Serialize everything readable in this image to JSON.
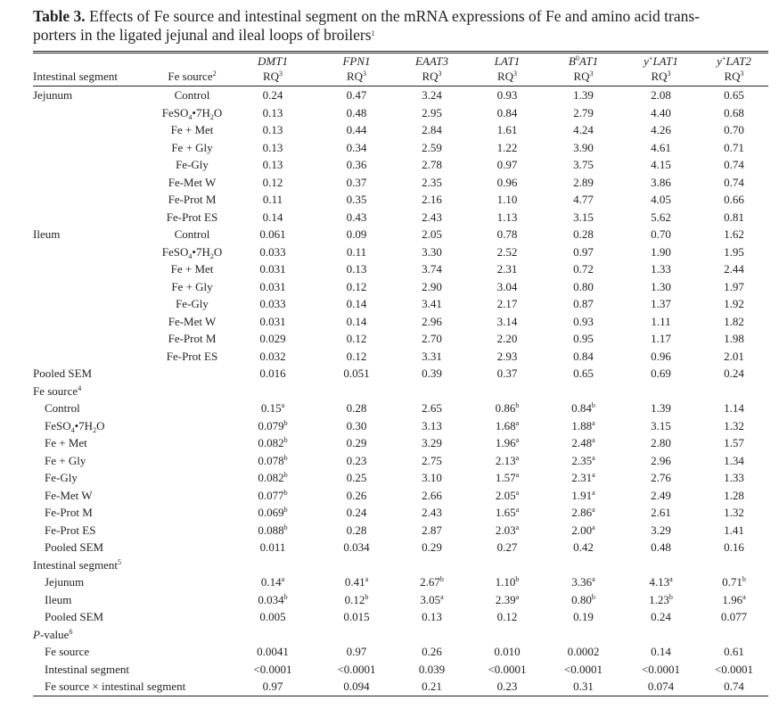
{
  "table": {
    "title": {
      "label": "Table 3.",
      "lines": [
        "Effects of Fe source and intestinal segment on the mRNA expressions of Fe and amino acid trans-",
        "porters in the ligated jejunal and ileal loops of broilers"
      ],
      "sup": "1"
    },
    "header": {
      "segment_label": "Intestinal segment",
      "source_label": [
        "Fe source",
        {
          "sup": "2"
        }
      ],
      "columns": [
        {
          "name": [
            {
              "i": "DMT1"
            }
          ],
          "unit": [
            "RQ",
            {
              "sup": "3"
            }
          ]
        },
        {
          "name": [
            {
              "i": "FPN1"
            }
          ],
          "unit": [
            "RQ",
            {
              "sup": "3"
            }
          ]
        },
        {
          "name": [
            {
              "i": "EAAT3"
            }
          ],
          "unit": [
            "RQ",
            {
              "sup": "3"
            }
          ]
        },
        {
          "name": [
            {
              "i": "LAT1"
            }
          ],
          "unit": [
            "RQ",
            {
              "sup": "3"
            }
          ]
        },
        {
          "name": [
            {
              "i": "B"
            },
            {
              "sup": "0"
            },
            {
              "i": "AT1"
            }
          ],
          "unit": [
            "RQ",
            {
              "sup": "3"
            }
          ]
        },
        {
          "name": [
            {
              "i": "y"
            },
            {
              "sup": "+"
            },
            {
              "i": "LAT1"
            }
          ],
          "unit": [
            "RQ",
            {
              "sup": "3"
            }
          ]
        },
        {
          "name": [
            {
              "i": "y"
            },
            {
              "sup": "+"
            },
            {
              "i": "LAT2"
            }
          ],
          "unit": [
            "RQ",
            {
              "sup": "3"
            }
          ]
        }
      ]
    },
    "sections": [
      {
        "segment": "Jejunum",
        "rows": [
          {
            "source": "Control",
            "values": [
              "0.24",
              "0.47",
              "3.24",
              "0.93",
              "1.39",
              "2.08",
              "0.65"
            ]
          },
          {
            "source": [
              "FeSO",
              {
                "sub": "4"
              },
              "•7H",
              {
                "sub": "2"
              },
              "O"
            ],
            "values": [
              "0.13",
              "0.48",
              "2.95",
              "0.84",
              "2.79",
              "4.40",
              "0.68"
            ]
          },
          {
            "source": "Fe + Met",
            "values": [
              "0.13",
              "0.44",
              "2.84",
              "1.61",
              "4.24",
              "4.26",
              "0.70"
            ]
          },
          {
            "source": "Fe + Gly",
            "values": [
              "0.13",
              "0.34",
              "2.59",
              "1.22",
              "3.90",
              "4.61",
              "0.71"
            ]
          },
          {
            "source": "Fe-Gly",
            "values": [
              "0.13",
              "0.36",
              "2.78",
              "0.97",
              "3.75",
              "4.15",
              "0.74"
            ]
          },
          {
            "source": "Fe-Met W",
            "values": [
              "0.12",
              "0.37",
              "2.35",
              "0.96",
              "2.89",
              "3.86",
              "0.74"
            ]
          },
          {
            "source": "Fe-Prot M",
            "values": [
              "0.11",
              "0.35",
              "2.16",
              "1.10",
              "4.77",
              "4.05",
              "0.66"
            ]
          },
          {
            "source": "Fe-Prot ES",
            "values": [
              "0.14",
              "0.43",
              "2.43",
              "1.13",
              "3.15",
              "5.62",
              "0.81"
            ]
          }
        ]
      },
      {
        "segment": "Ileum",
        "rows": [
          {
            "source": "Control",
            "values": [
              "0.061",
              "0.09",
              "2.05",
              "0.78",
              "0.28",
              "0.70",
              "1.62"
            ]
          },
          {
            "source": [
              "FeSO",
              {
                "sub": "4"
              },
              "•7H",
              {
                "sub": "2"
              },
              "O"
            ],
            "values": [
              "0.033",
              "0.11",
              "3.30",
              "2.52",
              "0.97",
              "1.90",
              "1.95"
            ]
          },
          {
            "source": "Fe + Met",
            "values": [
              "0.031",
              "0.13",
              "3.74",
              "2.31",
              "0.72",
              "1.33",
              "2.44"
            ]
          },
          {
            "source": "Fe + Gly",
            "values": [
              "0.031",
              "0.12",
              "2.90",
              "3.04",
              "0.80",
              "1.30",
              "1.97"
            ]
          },
          {
            "source": "Fe-Gly",
            "values": [
              "0.033",
              "0.14",
              "3.41",
              "2.17",
              "0.87",
              "1.37",
              "1.92"
            ]
          },
          {
            "source": "Fe-Met W",
            "values": [
              "0.031",
              "0.14",
              "2.96",
              "3.14",
              "0.93",
              "1.11",
              "1.82"
            ]
          },
          {
            "source": "Fe-Prot M",
            "values": [
              "0.029",
              "0.12",
              "2.70",
              "2.20",
              "0.95",
              "1.17",
              "1.98"
            ]
          },
          {
            "source": "Fe-Prot ES",
            "values": [
              "0.032",
              "0.12",
              "3.31",
              "2.93",
              "0.84",
              "0.96",
              "2.01"
            ]
          }
        ]
      }
    ],
    "pooled_sem": {
      "label": "Pooled SEM",
      "values": [
        "0.016",
        "0.051",
        "0.39",
        "0.37",
        "0.65",
        "0.69",
        "0.24"
      ]
    },
    "groups": [
      {
        "heading": [
          "Fe source",
          {
            "sup": "4"
          }
        ],
        "rows": [
          {
            "label": "Control",
            "values": [
              [
                "0.15",
                {
                  "sup": "a"
                }
              ],
              "0.28",
              "2.65",
              [
                "0.86",
                {
                  "sup": "b"
                }
              ],
              [
                "0.84",
                {
                  "sup": "b"
                }
              ],
              "1.39",
              "1.14"
            ]
          },
          {
            "label": [
              "FeSO",
              {
                "sub": "4"
              },
              "•7H",
              {
                "sub": "2"
              },
              "O"
            ],
            "values": [
              [
                "0.079",
                {
                  "sup": "b"
                }
              ],
              "0.30",
              "3.13",
              [
                "1.68",
                {
                  "sup": "a"
                }
              ],
              [
                "1.88",
                {
                  "sup": "a"
                }
              ],
              "3.15",
              "1.32"
            ]
          },
          {
            "label": "Fe + Met",
            "values": [
              [
                "0.082",
                {
                  "sup": "b"
                }
              ],
              "0.29",
              "3.29",
              [
                "1.96",
                {
                  "sup": "a"
                }
              ],
              [
                "2.48",
                {
                  "sup": "a"
                }
              ],
              "2.80",
              "1.57"
            ]
          },
          {
            "label": "Fe + Gly",
            "values": [
              [
                "0.078",
                {
                  "sup": "b"
                }
              ],
              "0.23",
              "2.75",
              [
                "2.13",
                {
                  "sup": "a"
                }
              ],
              [
                "2.35",
                {
                  "sup": "a"
                }
              ],
              "2.96",
              "1.34"
            ]
          },
          {
            "label": "Fe-Gly",
            "values": [
              [
                "0.082",
                {
                  "sup": "b"
                }
              ],
              "0.25",
              "3.10",
              [
                "1.57",
                {
                  "sup": "a"
                }
              ],
              [
                "2.31",
                {
                  "sup": "a"
                }
              ],
              "2.76",
              "1.33"
            ]
          },
          {
            "label": "Fe-Met W",
            "values": [
              [
                "0.077",
                {
                  "sup": "b"
                }
              ],
              "0.26",
              "2.66",
              [
                "2.05",
                {
                  "sup": "a"
                }
              ],
              [
                "1.91",
                {
                  "sup": "a"
                }
              ],
              "2.49",
              "1.28"
            ]
          },
          {
            "label": "Fe-Prot M",
            "values": [
              [
                "0.069",
                {
                  "sup": "b"
                }
              ],
              "0.24",
              "2.43",
              [
                "1.65",
                {
                  "sup": "a"
                }
              ],
              [
                "2.86",
                {
                  "sup": "a"
                }
              ],
              "2.61",
              "1.32"
            ]
          },
          {
            "label": "Fe-Prot ES",
            "values": [
              [
                "0.088",
                {
                  "sup": "b"
                }
              ],
              "0.28",
              "2.87",
              [
                "2.03",
                {
                  "sup": "a"
                }
              ],
              [
                "2.00",
                {
                  "sup": "a"
                }
              ],
              "3.29",
              "1.41"
            ]
          },
          {
            "label": "Pooled SEM",
            "values": [
              "0.011",
              "0.034",
              "0.29",
              "0.27",
              "0.42",
              "0.48",
              "0.16"
            ]
          }
        ]
      },
      {
        "heading": [
          "Intestinal segment",
          {
            "sup": "5"
          }
        ],
        "rows": [
          {
            "label": "Jejunum",
            "values": [
              [
                "0.14",
                {
                  "sup": "a"
                }
              ],
              [
                "0.41",
                {
                  "sup": "a"
                }
              ],
              [
                "2.67",
                {
                  "sup": "b"
                }
              ],
              [
                "1.10",
                {
                  "sup": "b"
                }
              ],
              [
                "3.36",
                {
                  "sup": "a"
                }
              ],
              [
                "4.13",
                {
                  "sup": "a"
                }
              ],
              [
                "0.71",
                {
                  "sup": "b"
                }
              ]
            ]
          },
          {
            "label": "Ileum",
            "values": [
              [
                "0.034",
                {
                  "sup": "b"
                }
              ],
              [
                "0.12",
                {
                  "sup": "b"
                }
              ],
              [
                "3.05",
                {
                  "sup": "a"
                }
              ],
              [
                "2.39",
                {
                  "sup": "a"
                }
              ],
              [
                "0.80",
                {
                  "sup": "b"
                }
              ],
              [
                "1.23",
                {
                  "sup": "b"
                }
              ],
              [
                "1.96",
                {
                  "sup": "a"
                }
              ]
            ]
          },
          {
            "label": "Pooled SEM",
            "values": [
              "0.005",
              "0.015",
              "0.13",
              "0.12",
              "0.19",
              "0.24",
              "0.077"
            ]
          }
        ]
      },
      {
        "heading": [
          {
            "i": "P"
          },
          "-value",
          {
            "sup": "6"
          }
        ],
        "rows": [
          {
            "label": "Fe source",
            "values": [
              "0.0041",
              "0.97",
              "0.26",
              "0.010",
              "0.0002",
              "0.14",
              "0.61"
            ]
          },
          {
            "label": "Intestinal segment",
            "values": [
              "<0.0001",
              "<0.0001",
              "0.039",
              "<0.0001",
              "<0.0001",
              "<0.0001",
              "<0.0001"
            ]
          },
          {
            "label": "Fe source × intestinal segment",
            "values": [
              "0.97",
              "0.094",
              "0.21",
              "0.23",
              "0.31",
              "0.074",
              "0.74"
            ]
          }
        ]
      }
    ]
  }
}
